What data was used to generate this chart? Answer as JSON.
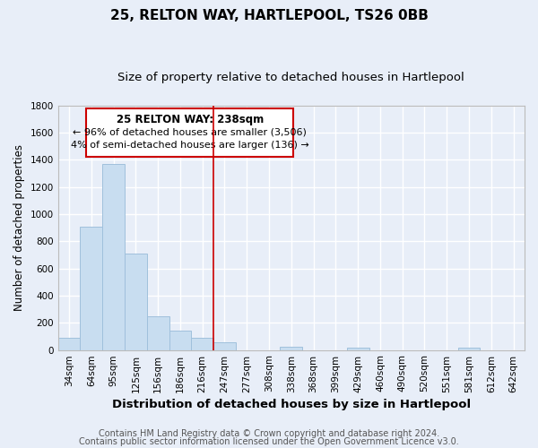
{
  "title": "25, RELTON WAY, HARTLEPOOL, TS26 0BB",
  "subtitle": "Size of property relative to detached houses in Hartlepool",
  "xlabel": "Distribution of detached houses by size in Hartlepool",
  "ylabel": "Number of detached properties",
  "bar_color": "#c8ddf0",
  "bar_edge_color": "#a0c0dc",
  "categories": [
    "34sqm",
    "64sqm",
    "95sqm",
    "125sqm",
    "156sqm",
    "186sqm",
    "216sqm",
    "247sqm",
    "277sqm",
    "308sqm",
    "338sqm",
    "368sqm",
    "399sqm",
    "429sqm",
    "460sqm",
    "490sqm",
    "520sqm",
    "551sqm",
    "581sqm",
    "612sqm",
    "642sqm"
  ],
  "values": [
    90,
    910,
    1370,
    710,
    250,
    145,
    90,
    55,
    0,
    0,
    25,
    0,
    0,
    15,
    0,
    0,
    0,
    0,
    15,
    0,
    0
  ],
  "ylim": [
    0,
    1800
  ],
  "yticks": [
    0,
    200,
    400,
    600,
    800,
    1000,
    1200,
    1400,
    1600,
    1800
  ],
  "vline_color": "#cc0000",
  "annotation_title": "25 RELTON WAY: 238sqm",
  "annotation_line1": "← 96% of detached houses are smaller (3,506)",
  "annotation_line2": "4% of semi-detached houses are larger (136) →",
  "annotation_box_color": "#ffffff",
  "annotation_box_edge": "#cc0000",
  "footer1": "Contains HM Land Registry data © Crown copyright and database right 2024.",
  "footer2": "Contains public sector information licensed under the Open Government Licence v3.0.",
  "background_color": "#e8eef8",
  "grid_color": "#ffffff",
  "title_fontsize": 11,
  "subtitle_fontsize": 9.5,
  "xlabel_fontsize": 9.5,
  "ylabel_fontsize": 8.5,
  "tick_fontsize": 7.5,
  "footer_fontsize": 7.0,
  "ann_fontsize_title": 8.5,
  "ann_fontsize_body": 8.0
}
